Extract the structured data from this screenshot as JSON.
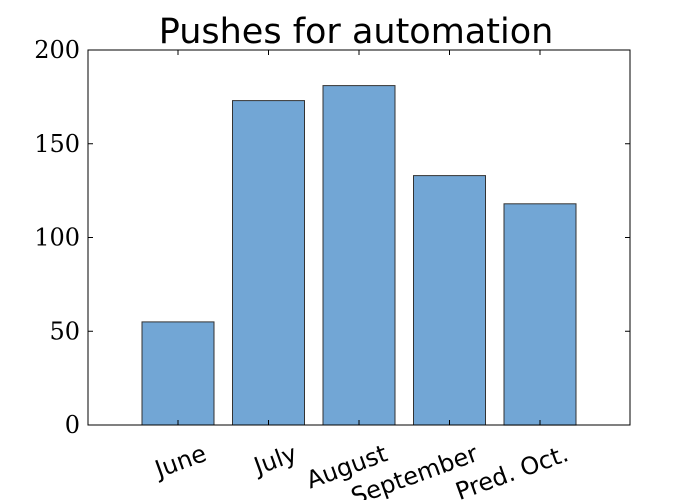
{
  "chart_data": {
    "type": "bar",
    "title": "Pushes for automation",
    "categories": [
      "June",
      "July",
      "August",
      "September",
      "Pred. Oct."
    ],
    "values": [
      55,
      173,
      181,
      133,
      118
    ],
    "xlabel": "",
    "ylabel": "",
    "ylim": [
      0,
      200
    ],
    "yticks": [
      "0",
      "50",
      "100",
      "150",
      "200"
    ],
    "grid": false,
    "legend": "none",
    "bar_color": "#72a6d5",
    "bar_edge_color": "#333333"
  }
}
